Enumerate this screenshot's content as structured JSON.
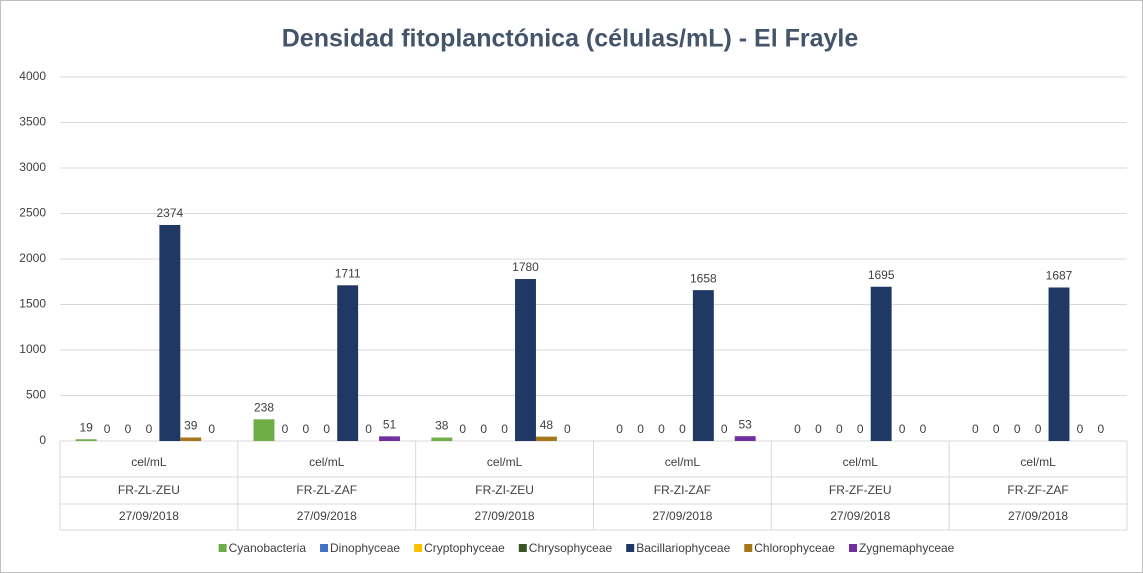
{
  "chart_data": {
    "type": "bar",
    "title": "Densidad fitoplanctónica (células/mL) - El Frayle",
    "categories": [
      [
        "cel/mL",
        "FR-ZL-ZEU",
        "27/09/2018"
      ],
      [
        "cel/mL",
        "FR-ZL-ZAF",
        "27/09/2018"
      ],
      [
        "cel/mL",
        "FR-ZI-ZEU",
        "27/09/2018"
      ],
      [
        "cel/mL",
        "FR-ZI-ZAF",
        "27/09/2018"
      ],
      [
        "cel/mL",
        "FR-ZF-ZEU",
        "27/09/2018"
      ],
      [
        "cel/mL",
        "FR-ZF-ZAF",
        "27/09/2018"
      ]
    ],
    "series": [
      {
        "name": "Cyanobacteria",
        "color": "#70ad47",
        "values": [
          19,
          238,
          38,
          0,
          0,
          0
        ]
      },
      {
        "name": "Dinophyceae",
        "color": "#4472c4",
        "values": [
          0,
          0,
          0,
          0,
          0,
          0
        ]
      },
      {
        "name": "Cryptophyceae",
        "color": "#ffc000",
        "values": [
          0,
          0,
          0,
          0,
          0,
          0
        ]
      },
      {
        "name": "Chrysophyceae",
        "color": "#375623",
        "values": [
          0,
          0,
          0,
          0,
          0,
          0
        ]
      },
      {
        "name": "Bacillariophyceae",
        "color": "#203864",
        "values": [
          2374,
          1711,
          1780,
          1658,
          1695,
          1687
        ]
      },
      {
        "name": "Chlorophyceae",
        "color": "#a5781e",
        "values": [
          39,
          0,
          48,
          0,
          0,
          0
        ]
      },
      {
        "name": "Zygnemaphyceae",
        "color": "#7030a0",
        "values": [
          0,
          51,
          0,
          53,
          0,
          0
        ]
      }
    ],
    "ylim": [
      0,
      4000
    ],
    "yticks": [
      0,
      500,
      1000,
      1500,
      2000,
      2500,
      3000,
      3500,
      4000
    ],
    "grid": true,
    "legend": "bottom"
  }
}
